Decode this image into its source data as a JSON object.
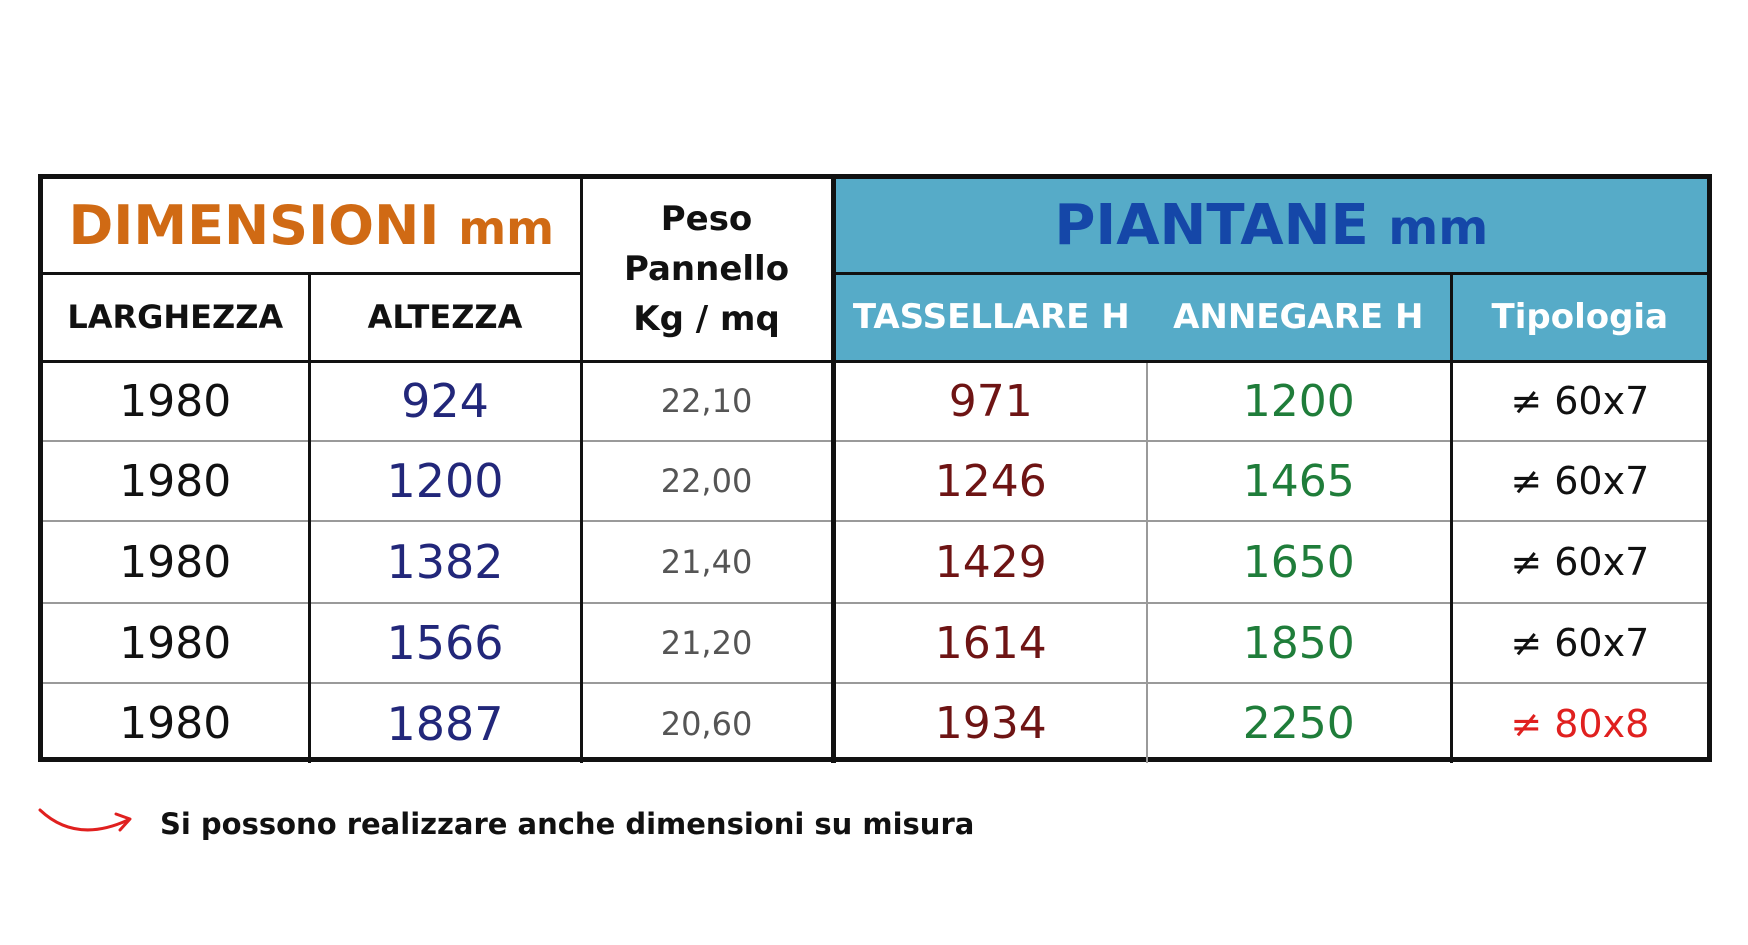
{
  "header": {
    "dimensioni_label": "DIMENSIONI",
    "dimensioni_unit": "mm",
    "peso_line1": "Peso",
    "peso_line2": "Pannello",
    "peso_line3": "Kg / mq",
    "piantane_label": "PIANTANE",
    "piantane_unit": "mm",
    "larghezza": "LARGHEZZA",
    "altezza": "ALTEZZA",
    "tassellare": "TASSELLARE H",
    "annegare": "ANNEGARE H",
    "tipologia": "Tipologia"
  },
  "rows": [
    {
      "larghezza": "1980",
      "altezza": "924",
      "peso": "22,10",
      "tassellare": "971",
      "annegare": "1200",
      "tipologia": "≠ 60x7"
    },
    {
      "larghezza": "1980",
      "altezza": "1200",
      "peso": "22,00",
      "tassellare": "1246",
      "annegare": "1465",
      "tipologia": "≠ 60x7"
    },
    {
      "larghezza": "1980",
      "altezza": "1382",
      "peso": "21,40",
      "tassellare": "1429",
      "annegare": "1650",
      "tipologia": "≠ 60x7"
    },
    {
      "larghezza": "1980",
      "altezza": "1566",
      "peso": "21,20",
      "tassellare": "1614",
      "annegare": "1850",
      "tipologia": "≠ 60x7"
    },
    {
      "larghezza": "1980",
      "altezza": "1887",
      "peso": "20,60",
      "tassellare": "1934",
      "annegare": "2250",
      "tipologia": "≠ 80x8"
    }
  ],
  "note": {
    "icon": "curved-arrow-icon",
    "text": "Si possono realizzare anche dimensioni su misura"
  },
  "colors": {
    "dimensioni": "#d06a14",
    "piantane_bg": "#56abc8",
    "piantane_title": "#1547a8",
    "altezza_values": "#22277a",
    "tassellare_values": "#6e1414",
    "annegare_values": "#1f7d3a",
    "highlight_red": "#e0201f"
  }
}
